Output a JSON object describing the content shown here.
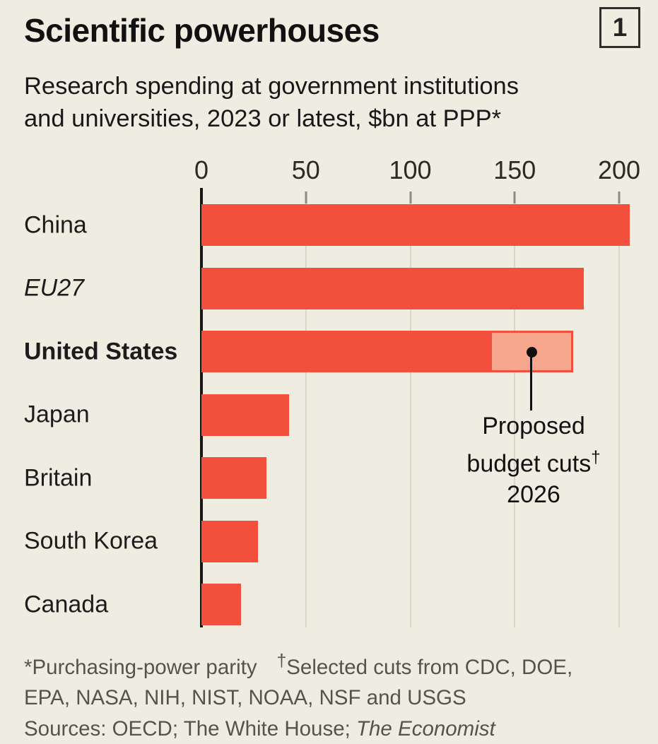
{
  "header": {
    "title": "Scientific powerhouses",
    "index_badge": "1",
    "subtitle_line1": "Research spending at government institutions",
    "subtitle_line2": "and universities, 2023 or latest, $bn at PPP*"
  },
  "chart_data": {
    "type": "bar",
    "orientation": "horizontal",
    "title": "Scientific powerhouses",
    "subtitle": "Research spending at government institutions and universities, 2023 or latest, $bn at PPP*",
    "xlabel": "$bn at PPP",
    "xlim": [
      0,
      218
    ],
    "x_ticks": [
      0,
      50,
      100,
      150,
      200
    ],
    "grid": true,
    "categories": [
      "China",
      "EU27",
      "United States",
      "Japan",
      "Britain",
      "South Korea",
      "Canada"
    ],
    "values": [
      205,
      183,
      178,
      42,
      31,
      27,
      19
    ],
    "bars": [
      {
        "label": "China",
        "value": 205,
        "label_style": "normal"
      },
      {
        "label": "EU27",
        "value": 183,
        "label_style": "italic"
      },
      {
        "label": "United States",
        "value": 178,
        "label_style": "bold",
        "cut_from": 138
      },
      {
        "label": "Japan",
        "value": 42,
        "label_style": "normal"
      },
      {
        "label": "Britain",
        "value": 31,
        "label_style": "normal"
      },
      {
        "label": "South Korea",
        "value": 27,
        "label_style": "normal"
      },
      {
        "label": "Canada",
        "value": 19,
        "label_style": "normal"
      }
    ],
    "annotation": {
      "line1": "Proposed",
      "line2": "budget cuts",
      "line2_sup": "†",
      "line3": "2026"
    },
    "colors": {
      "background": "#EFEDE2",
      "bar": "#F2503C",
      "cut_fill": "#F7A78D",
      "cut_border": "#F2503C",
      "grid": "#DAD7C9",
      "tick": "#8E8C80",
      "axis": "#161616",
      "text": "#141414",
      "muted": "#55544B"
    }
  },
  "footnotes": {
    "note1": "*Purchasing-power parity",
    "note2_dagger": "†",
    "note2_rest": "Selected cuts from CDC, DOE,",
    "note_line2": "EPA, NASA, NIH, NIST, NOAA, NSF and USGS",
    "sources_prefix": "Sources: OECD; The White House; ",
    "sources_italic": "The Economist"
  }
}
